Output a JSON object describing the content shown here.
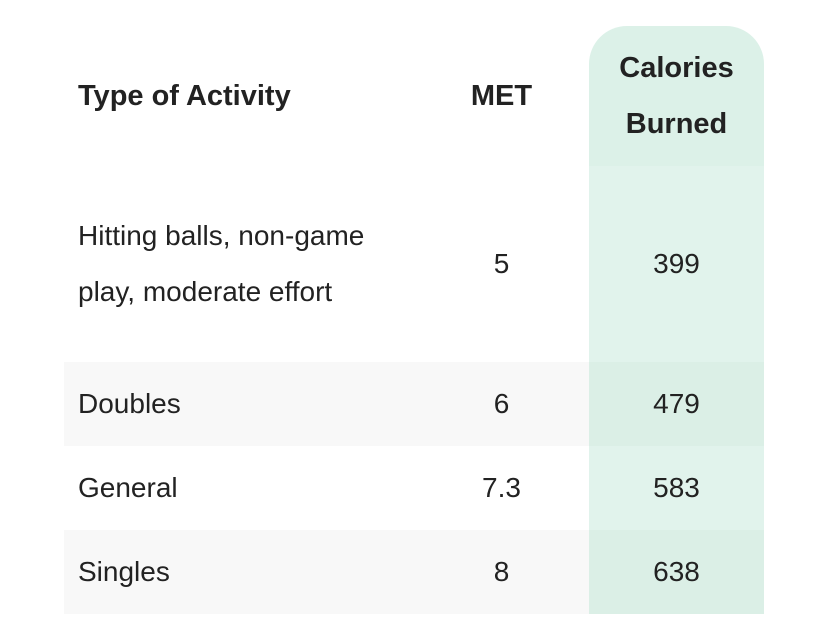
{
  "table": {
    "headers": {
      "activity": "Type of Activity",
      "met": "MET",
      "calories": "Calories Burned"
    },
    "rows": [
      {
        "activity": "Hitting balls, non-game play, moderate effort",
        "met": "5",
        "calories": "399"
      },
      {
        "activity": "Doubles",
        "met": "6",
        "calories": "479"
      },
      {
        "activity": "General",
        "met": "7.3",
        "calories": "583"
      },
      {
        "activity": "Singles",
        "met": "8",
        "calories": "638"
      }
    ]
  },
  "colors": {
    "highlight_column": "#e1f3ec",
    "stripe_row": "#f8f8f8",
    "text": "#222222"
  }
}
